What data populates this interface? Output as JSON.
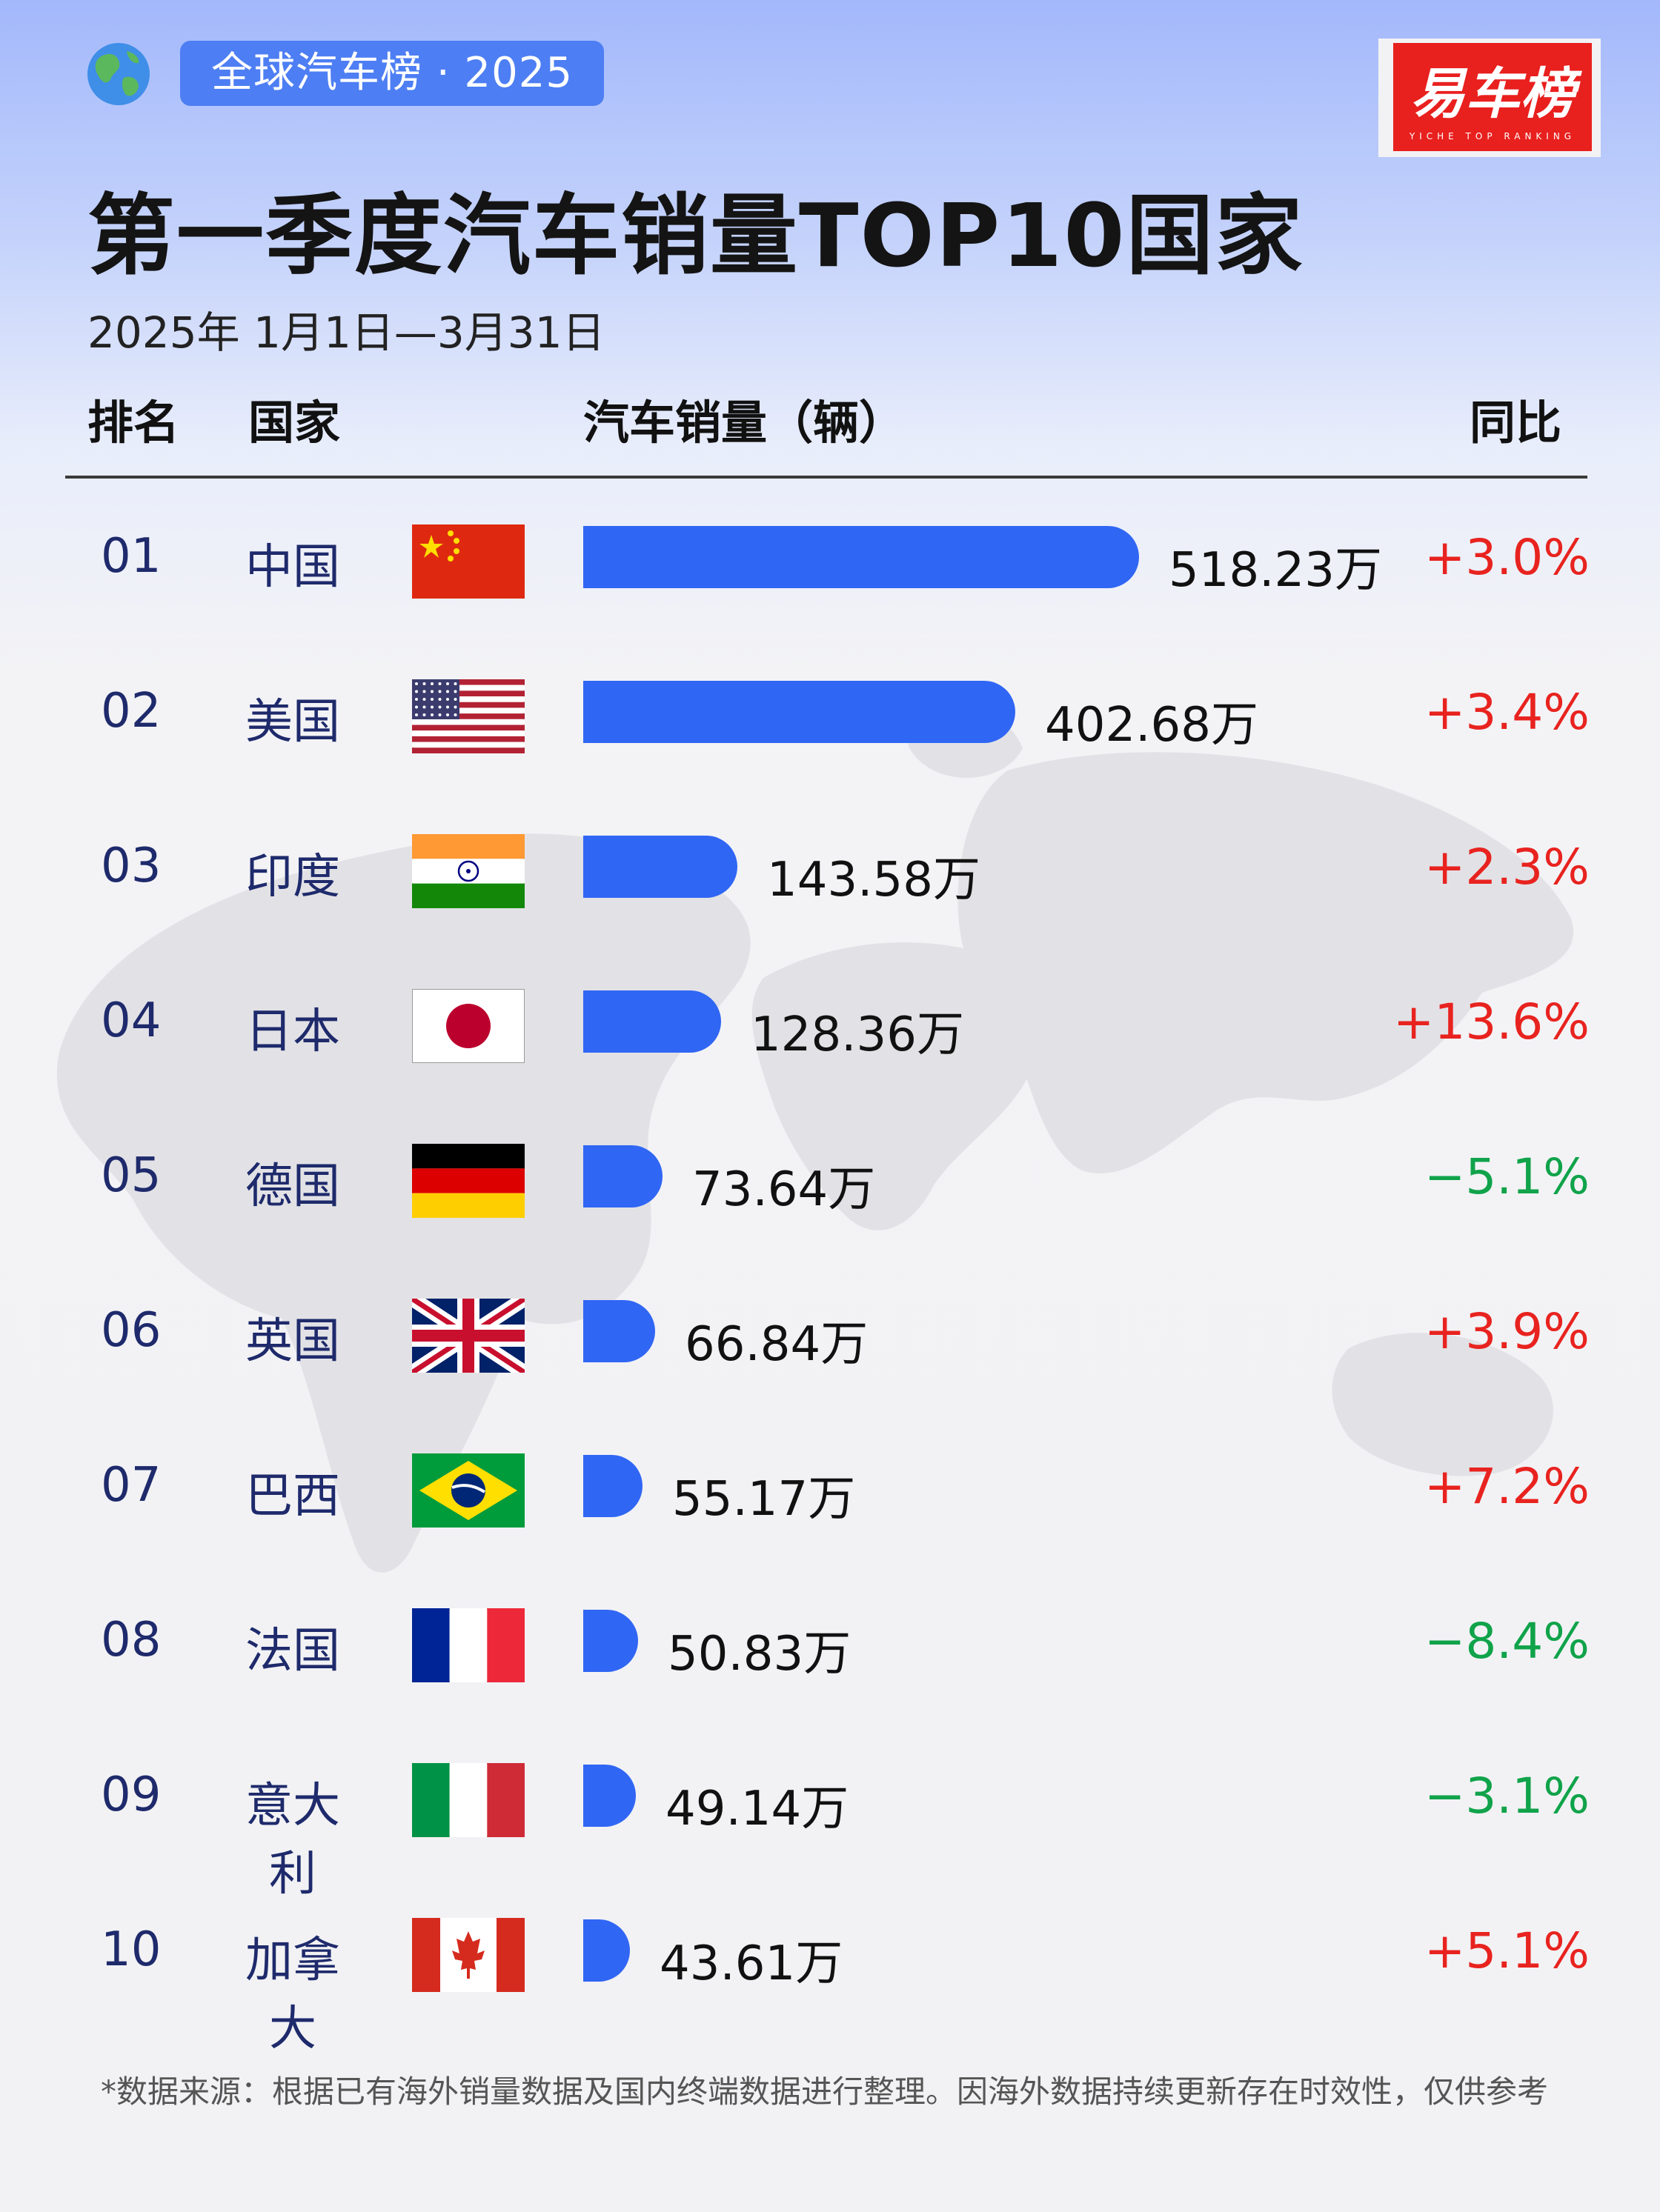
{
  "tag": "全球汽车榜 · 2025",
  "logo": {
    "text": "易车榜",
    "sub": "YICHE TOP RANKING",
    "color": "#e8201e"
  },
  "title": "第一季度汽车销量TOP10国家",
  "date_range": "2025年 1月1日—3月31日",
  "headers": {
    "rank": "排名",
    "country": "国家",
    "sales": "汽车销量（辆）",
    "yoy": "同比"
  },
  "colors": {
    "bar": "#3066f4",
    "up": "#e8231f",
    "down": "#10a34a"
  },
  "chart_data": {
    "type": "bar",
    "orientation": "horizontal",
    "unit": "万",
    "rows": [
      {
        "rank": "01",
        "country": "中国",
        "flag": "china-flag",
        "value": 518.23,
        "value_label": "518.23万",
        "yoy": "+3.0%",
        "trend": "up"
      },
      {
        "rank": "02",
        "country": "美国",
        "flag": "usa-flag",
        "value": 402.68,
        "value_label": "402.68万",
        "yoy": "+3.4%",
        "trend": "up"
      },
      {
        "rank": "03",
        "country": "印度",
        "flag": "india-flag",
        "value": 143.58,
        "value_label": "143.58万",
        "yoy": "+2.3%",
        "trend": "up"
      },
      {
        "rank": "04",
        "country": "日本",
        "flag": "japan-flag",
        "value": 128.36,
        "value_label": "128.36万",
        "yoy": "+13.6%",
        "trend": "up"
      },
      {
        "rank": "05",
        "country": "德国",
        "flag": "germany-flag",
        "value": 73.64,
        "value_label": "73.64万",
        "yoy": "−5.1%",
        "trend": "down"
      },
      {
        "rank": "06",
        "country": "英国",
        "flag": "uk-flag",
        "value": 66.84,
        "value_label": "66.84万",
        "yoy": "+3.9%",
        "trend": "up"
      },
      {
        "rank": "07",
        "country": "巴西",
        "flag": "brazil-flag",
        "value": 55.17,
        "value_label": "55.17万",
        "yoy": "+7.2%",
        "trend": "up"
      },
      {
        "rank": "08",
        "country": "法国",
        "flag": "france-flag",
        "value": 50.83,
        "value_label": "50.83万",
        "yoy": "−8.4%",
        "trend": "down"
      },
      {
        "rank": "09",
        "country": "意大利",
        "flag": "italy-flag",
        "value": 49.14,
        "value_label": "49.14万",
        "yoy": "−3.1%",
        "trend": "down"
      },
      {
        "rank": "10",
        "country": "加拿大",
        "flag": "canada-flag",
        "value": 43.61,
        "value_label": "43.61万",
        "yoy": "+5.1%",
        "trend": "up"
      }
    ]
  },
  "footnote": "*数据来源：根据已有海外销量数据及国内终端数据进行整理。因海外数据持续更新存在时效性，仅供参考"
}
